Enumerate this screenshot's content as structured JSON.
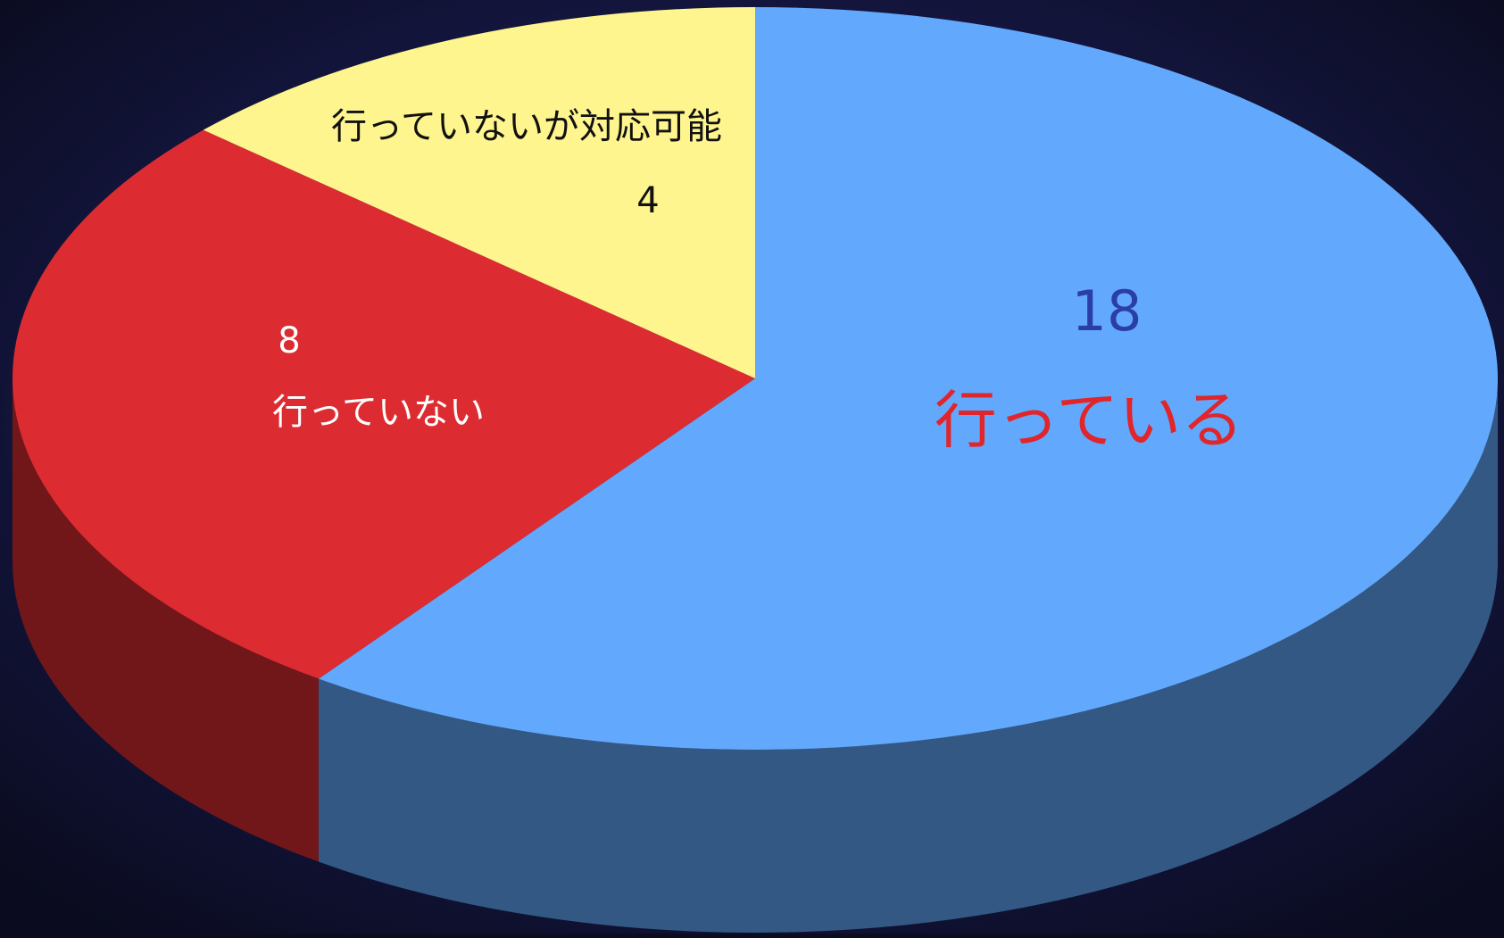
{
  "chart_data": {
    "type": "pie",
    "style": "3d",
    "slices": [
      {
        "label": "行っている",
        "value": 18,
        "color": "#62a9fd"
      },
      {
        "label": "行っていない",
        "value": 8,
        "color": "#dc2c31"
      },
      {
        "label": "行っていないが対応可能",
        "value": 4,
        "color": "#fef58e"
      }
    ],
    "label_colors": {
      "行っている": {
        "value": "#2b3ea8",
        "label": "#e0252b"
      },
      "行っていない": {
        "value": "#ffffff",
        "label": "#ffffff"
      },
      "行っていないが対応可能": {
        "value": "#111111",
        "label": "#111111"
      }
    },
    "background": "#0b0c22"
  }
}
